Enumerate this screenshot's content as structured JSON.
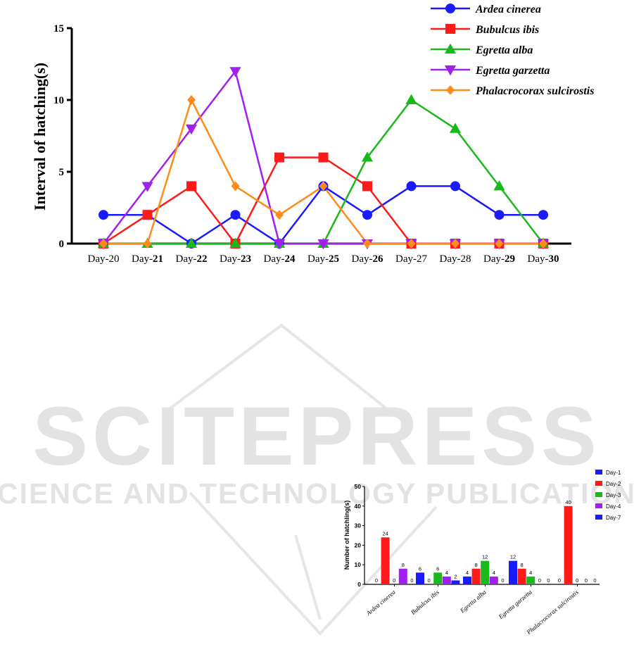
{
  "watermark": {
    "title": "SCITEPRESS",
    "subtitle": "SCIENCE AND TECHNOLOGY PUBLICATIONS",
    "color": "#d8d8d8"
  },
  "chart_data": [
    {
      "type": "line",
      "title": "",
      "xlabel": "",
      "ylabel": "Interval of hatching(s)",
      "categories": [
        "Day-20",
        "Day-21",
        "Day-22",
        "Day-23",
        "Day-24",
        "Day-25",
        "Day-26",
        "Day-27",
        "Day-28",
        "Day-29",
        "Day-30"
      ],
      "category_labels": [
        {
          "prefix": "Day-",
          "num": "20",
          "bold": false
        },
        {
          "prefix": "Day-",
          "num": "21",
          "bold": true
        },
        {
          "prefix": "Day-",
          "num": "22",
          "bold": true
        },
        {
          "prefix": "Day-",
          "num": "23",
          "bold": true
        },
        {
          "prefix": "Day-",
          "num": "24",
          "bold": true
        },
        {
          "prefix": "Day-",
          "num": "25",
          "bold": true
        },
        {
          "prefix": "Day-",
          "num": "26",
          "bold": true
        },
        {
          "prefix": "Day-",
          "num": "27",
          "bold": false
        },
        {
          "prefix": "Day-",
          "num": "28",
          "bold": false
        },
        {
          "prefix": "Day-",
          "num": "29",
          "bold": true
        },
        {
          "prefix": "Day-",
          "num": "30",
          "bold": true
        }
      ],
      "ylim": [
        0,
        15
      ],
      "yticks": [
        "0",
        "5",
        "10",
        "15"
      ],
      "grid": false,
      "legend_position": "top-right",
      "series": [
        {
          "name": "Ardea cinerea",
          "color": "#1a1aff",
          "marker": "circle",
          "values": [
            2,
            2,
            0,
            2,
            0,
            4,
            2,
            4,
            4,
            2,
            2
          ]
        },
        {
          "name": "Bubulcus ibis",
          "color": "#ff1a1a",
          "marker": "square",
          "values": [
            0,
            2,
            4,
            0,
            6,
            6,
            4,
            0,
            0,
            0,
            0
          ]
        },
        {
          "name": "Egretta alba",
          "color": "#1ab81a",
          "marker": "triangle-up",
          "values": [
            0,
            0,
            0,
            0,
            0,
            0,
            6,
            10,
            8,
            4,
            0
          ]
        },
        {
          "name": "Egretta garzetta",
          "color": "#a020f0",
          "marker": "triangle-down",
          "values": [
            0,
            4,
            8,
            12,
            0,
            0,
            0,
            0,
            0,
            0,
            0
          ]
        },
        {
          "name": "Phalacrocorax sulcirostis",
          "color": "#ff8c1a",
          "marker": "diamond",
          "values": [
            0,
            0,
            10,
            4,
            2,
            4,
            0,
            0,
            0,
            0,
            0
          ]
        }
      ]
    },
    {
      "type": "bar",
      "title": "",
      "xlabel": "",
      "ylabel": "Number of hatchling(s)",
      "categories": [
        "Ardea cinerea",
        "Bubulcus ibis",
        "Egretta alba",
        "Egretta garzetta",
        "Phalacrocorax sulcirostis"
      ],
      "ylim": [
        0,
        50
      ],
      "yticks": [
        "0",
        "10",
        "20",
        "30",
        "40",
        "50"
      ],
      "grid": false,
      "legend_position": "top-right",
      "series": [
        {
          "name": "Day-1",
          "color": "#1a1aff",
          "values": [
            0,
            6,
            4,
            12,
            0
          ]
        },
        {
          "name": "Day-2",
          "color": "#ff1a1a",
          "values": [
            24,
            0,
            8,
            8,
            40
          ]
        },
        {
          "name": "Day-3",
          "color": "#1ab81a",
          "values": [
            0,
            6,
            12,
            4,
            0
          ]
        },
        {
          "name": "Day-4",
          "color": "#a020f0",
          "values": [
            8,
            4,
            4,
            0,
            0
          ]
        },
        {
          "name": "Day-7",
          "color": "#1a1aff",
          "values": [
            0,
            2,
            0,
            0,
            0
          ]
        }
      ]
    }
  ]
}
